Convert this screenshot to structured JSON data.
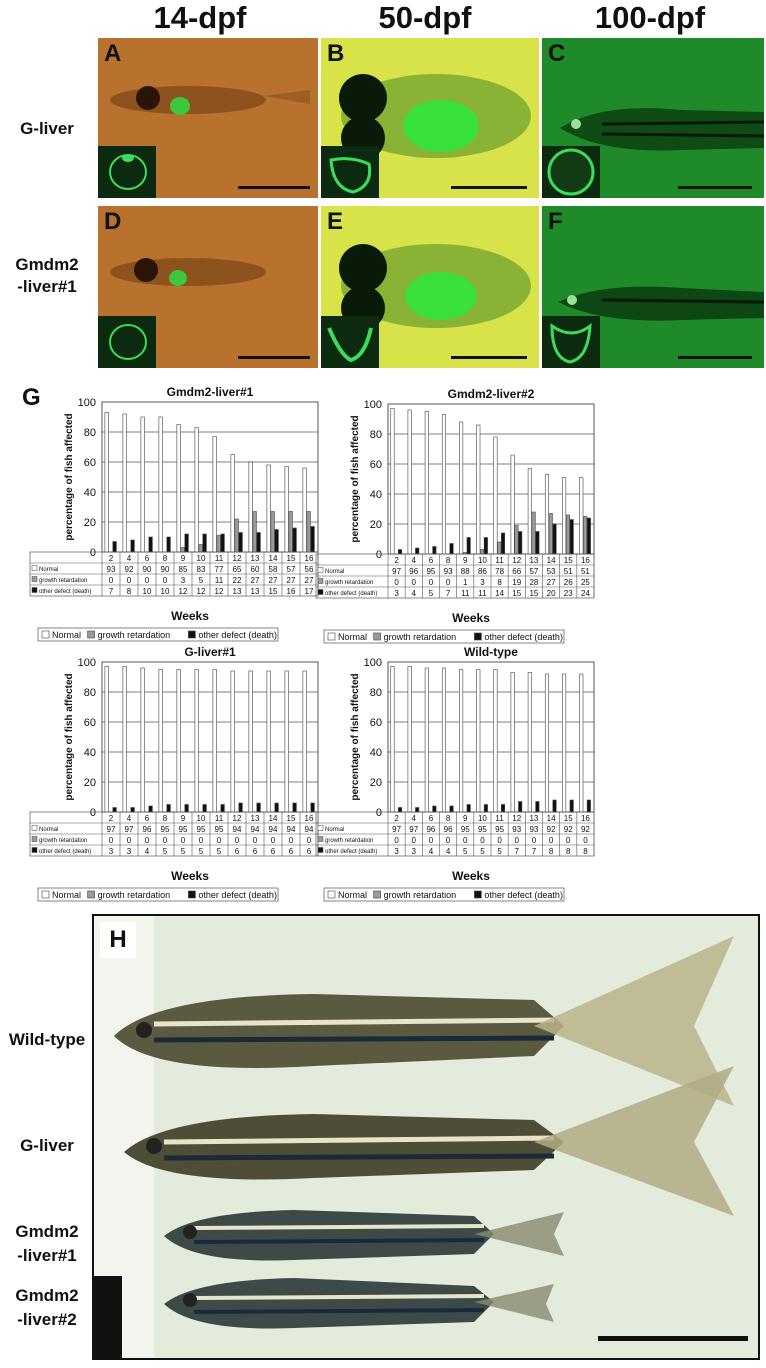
{
  "column_headers": [
    "14-dpf",
    "50-dpf",
    "100-dpf"
  ],
  "row_headers": [
    "G-liver",
    "Gmdm2\n-liver#1"
  ],
  "panels": [
    {
      "letter": "A",
      "bg": "#b8722e"
    },
    {
      "letter": "B",
      "bg": "#d8e34a"
    },
    {
      "letter": "C",
      "bg": "#1f8a2a"
    },
    {
      "letter": "D",
      "bg": "#b8722e"
    },
    {
      "letter": "E",
      "bg": "#d8e34a"
    },
    {
      "letter": "F",
      "bg": "#1f8a2a"
    }
  ],
  "panel_g_letter": "G",
  "panel_h_letter": "H",
  "row_labels_h": [
    "Wild-type",
    "G-liver",
    "Gmdm2\n-liver#1",
    "Gmdm2\n-liver#2"
  ],
  "chart_data": [
    {
      "type": "bar",
      "title": "Gmdm2-liver#1",
      "ylabel": "percentage of fish affected",
      "xlabel": "Weeks",
      "ylim": [
        0,
        100
      ],
      "categories": [
        "2",
        "4",
        "6",
        "8",
        "9",
        "10",
        "11",
        "12",
        "13",
        "14",
        "15",
        "16"
      ],
      "series": [
        {
          "name": "Normal",
          "values": [
            93,
            92,
            90,
            90,
            85,
            83,
            77,
            65,
            60,
            58,
            57,
            56
          ]
        },
        {
          "name": "growth retardation",
          "values": [
            0,
            0,
            0,
            0,
            3,
            5,
            11,
            22,
            27,
            27,
            27,
            27
          ]
        },
        {
          "name": "other defect (death)",
          "values": [
            7,
            8,
            10,
            10,
            12,
            12,
            12,
            13,
            13,
            15,
            16,
            17
          ]
        }
      ]
    },
    {
      "type": "bar",
      "title": "Gmdm2-liver#2",
      "ylabel": "percentage of fish affected",
      "xlabel": "Weeks",
      "ylim": [
        0,
        100
      ],
      "categories": [
        "2",
        "4",
        "6",
        "8",
        "9",
        "10",
        "11",
        "12",
        "13",
        "14",
        "15",
        "16"
      ],
      "series": [
        {
          "name": "Normal",
          "values": [
            97,
            96,
            95,
            93,
            88,
            86,
            78,
            66,
            57,
            53,
            51,
            51
          ]
        },
        {
          "name": "growth retardation",
          "values": [
            0,
            0,
            0,
            0,
            1,
            3,
            8,
            19,
            28,
            27,
            26,
            25
          ]
        },
        {
          "name": "other defect (death)",
          "values": [
            3,
            4,
            5,
            7,
            11,
            11,
            14,
            15,
            15,
            20,
            23,
            24
          ]
        }
      ]
    },
    {
      "type": "bar",
      "title": "G-liver#1",
      "ylabel": "percentage of fish affected",
      "xlabel": "Weeks",
      "ylim": [
        0,
        100
      ],
      "categories": [
        "2",
        "4",
        "6",
        "8",
        "9",
        "10",
        "11",
        "12",
        "13",
        "14",
        "15",
        "16"
      ],
      "series": [
        {
          "name": "Normal",
          "values": [
            97,
            97,
            96,
            95,
            95,
            95,
            95,
            94,
            94,
            94,
            94,
            94
          ]
        },
        {
          "name": "growth retardation",
          "values": [
            0,
            0,
            0,
            0,
            0,
            0,
            0,
            0,
            0,
            0,
            0,
            0
          ]
        },
        {
          "name": "other defect (death)",
          "values": [
            3,
            3,
            4,
            5,
            5,
            5,
            5,
            6,
            6,
            6,
            6,
            6
          ]
        }
      ]
    },
    {
      "type": "bar",
      "title": "Wild-type",
      "ylabel": "percentage of fish affected",
      "xlabel": "Weeks",
      "ylim": [
        0,
        100
      ],
      "categories": [
        "2",
        "4",
        "6",
        "8",
        "9",
        "10",
        "11",
        "12",
        "13",
        "14",
        "15",
        "16"
      ],
      "series": [
        {
          "name": "Normal",
          "values": [
            97,
            97,
            96,
            96,
            95,
            95,
            95,
            93,
            93,
            92,
            92,
            92
          ]
        },
        {
          "name": "growth retardation",
          "values": [
            0,
            0,
            0,
            0,
            0,
            0,
            0,
            0,
            0,
            0,
            0,
            0
          ]
        },
        {
          "name": "other defect (death)",
          "values": [
            3,
            3,
            4,
            4,
            5,
            5,
            5,
            7,
            7,
            8,
            8,
            8
          ]
        }
      ]
    }
  ],
  "series_colors": [
    "#ffffff",
    "#9a9a9a",
    "#111111"
  ],
  "legend_labels": [
    "Normal",
    "growth retardation",
    "other defect (death)"
  ]
}
